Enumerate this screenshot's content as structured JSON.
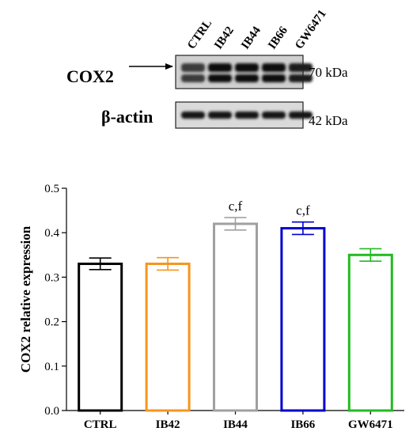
{
  "blot": {
    "lanes": [
      "CTRL",
      "IB42",
      "IB44",
      "IB66",
      "GW6471"
    ],
    "rows": [
      {
        "protein": "COX2",
        "marker": "70 kDa",
        "intensities": [
          0.55,
          0.95,
          0.95,
          0.98,
          0.85
        ]
      },
      {
        "protein": "β-actin",
        "marker": "42 kDa",
        "intensities": [
          0.9,
          0.9,
          0.9,
          0.9,
          0.9
        ]
      }
    ]
  },
  "chart_data": {
    "type": "bar",
    "categories": [
      "CTRL",
      "IB42",
      "IB44",
      "IB66",
      "GW6471"
    ],
    "values": [
      0.33,
      0.33,
      0.42,
      0.41,
      0.35
    ],
    "errors": [
      0.013,
      0.014,
      0.014,
      0.014,
      0.014
    ],
    "colors": [
      "#000000",
      "#f7941d",
      "#a0a0a0",
      "#0000cc",
      "#22bb22"
    ],
    "annotations": [
      "",
      "",
      "c,f",
      "c,f",
      ""
    ],
    "ylabel": "COX2 relative expression",
    "xlabel": "",
    "title": "",
    "ylim": [
      0.0,
      0.5
    ],
    "yticks": [
      "0.0",
      "0.1",
      "0.2",
      "0.3",
      "0.4",
      "0.5"
    ]
  }
}
